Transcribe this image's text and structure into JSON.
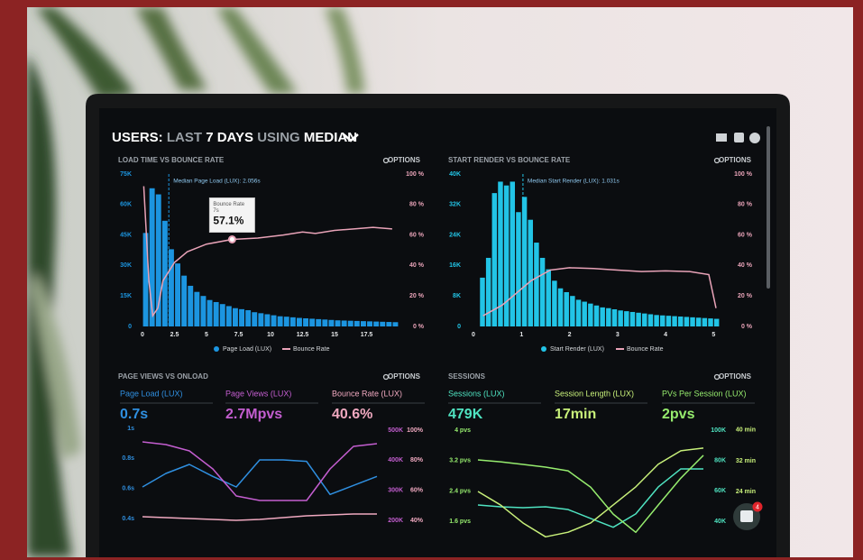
{
  "header": {
    "title_parts": [
      "USERS:",
      "LAST",
      "7 DAYS",
      "USING",
      "MEDIAN"
    ]
  },
  "panels": [
    {
      "title": "LOAD TIME VS BOUNCE RATE",
      "options": "OPTIONS",
      "type": "histogram",
      "bars": {
        "name": "Page Load (LUX)",
        "color": "#1c95e0",
        "bins": [
          0,
          0.5,
          1,
          1.5,
          2,
          2.5,
          3,
          3.5,
          4,
          4.5,
          5,
          5.5,
          6,
          6.5,
          7,
          7.5,
          8,
          8.5,
          9,
          9.5,
          10,
          10.5,
          11,
          11.5,
          12,
          12.5,
          13,
          13.5,
          14,
          14.5,
          15,
          15.5,
          16,
          16.5,
          17,
          17.5,
          18,
          18.5,
          19,
          19.5,
          20
        ],
        "values": [
          46000,
          68000,
          65000,
          52000,
          38000,
          31000,
          25000,
          20000,
          17000,
          15000,
          13000,
          12000,
          11000,
          10000,
          9000,
          8500,
          8000,
          7000,
          6500,
          6000,
          5500,
          5000,
          4800,
          4500,
          4200,
          4000,
          3800,
          3600,
          3400,
          3200,
          3000,
          2900,
          2800,
          2700,
          2600,
          2500,
          2400,
          2300,
          2200,
          2100
        ]
      },
      "line": {
        "name": "Bounce Rate",
        "color": "#e9a3b8",
        "x": [
          0.1,
          0.5,
          0.8,
          1.2,
          1.6,
          2.5,
          3.5,
          5,
          7,
          9,
          11,
          12.5,
          13.5,
          15,
          16.5,
          18,
          19.5
        ],
        "values": [
          92,
          30,
          7,
          12,
          30,
          42,
          49,
          54,
          57.1,
          58,
          60,
          62,
          61,
          63,
          64,
          65,
          64
        ]
      },
      "xlim": [
        0,
        20
      ],
      "xticks": [
        0,
        2.5,
        5,
        7.5,
        10,
        12.5,
        15,
        17.5
      ],
      "ylim": [
        0,
        75000
      ],
      "yticks": [
        {
          "value": 75000,
          "label": "75K"
        },
        {
          "value": 60000,
          "label": "60K"
        },
        {
          "value": 45000,
          "label": "45K"
        },
        {
          "value": 30000,
          "label": "30K"
        },
        {
          "value": 15000,
          "label": "15K"
        },
        0
      ],
      "y2lim": [
        0,
        100
      ],
      "y2ticks": [
        {
          "value": 100,
          "label": "100 %"
        },
        {
          "value": 80,
          "label": "80 %"
        },
        {
          "value": 60,
          "label": "60 %"
        },
        {
          "value": 40,
          "label": "40 %"
        },
        {
          "value": 20,
          "label": "20 %"
        },
        {
          "value": 0,
          "label": "0 %"
        }
      ],
      "annotation": "Median Page Load (LUX): 2.056s",
      "median": 2.056,
      "tooltip": {
        "title": "Bounce Rate",
        "x_label": "7s",
        "value_label": "57.1%",
        "x": 7,
        "value": 57.1
      }
    },
    {
      "title": "START RENDER VS BOUNCE RATE",
      "options": "OPTIONS",
      "type": "histogram",
      "bars": {
        "name": "Start Render (LUX)",
        "color": "#22c4e6",
        "bins": [
          0.125,
          0.25,
          0.375,
          0.5,
          0.625,
          0.75,
          0.875,
          1,
          1.125,
          1.25,
          1.375,
          1.5,
          1.625,
          1.75,
          1.875,
          2,
          2.125,
          2.25,
          2.375,
          2.5,
          2.625,
          2.75,
          2.875,
          3,
          3.125,
          3.25,
          3.375,
          3.5,
          3.625,
          3.75,
          3.875,
          4,
          4.125,
          4.25,
          4.375,
          4.5,
          4.625,
          4.75,
          4.875,
          5,
          5.125
        ],
        "values": [
          12800,
          18000,
          35000,
          38000,
          37000,
          38000,
          30000,
          34000,
          28000,
          22000,
          18000,
          15000,
          12000,
          10000,
          9000,
          8000,
          7000,
          6500,
          6000,
          5500,
          5000,
          4800,
          4500,
          4200,
          4000,
          3800,
          3600,
          3400,
          3200,
          3000,
          2900,
          2800,
          2700,
          2600,
          2500,
          2400,
          2300,
          2200,
          2100,
          2000
        ]
      },
      "line": {
        "name": "Bounce Rate",
        "color": "#e9a3b8",
        "x": [
          0.2,
          0.6,
          0.9,
          1.2,
          1.6,
          2,
          2.5,
          3,
          3.5,
          4,
          4.5,
          4.9,
          5.05
        ],
        "values": [
          7,
          14,
          22,
          30,
          37,
          38.5,
          38,
          37,
          36,
          36.5,
          36,
          34,
          12
        ]
      },
      "xlim": [
        0,
        5.2
      ],
      "xticks": [
        0,
        1,
        2,
        3,
        4,
        5
      ],
      "ylim": [
        0,
        40000
      ],
      "yticks": [
        {
          "value": 40000,
          "label": "40K"
        },
        {
          "value": 32000,
          "label": "32K"
        },
        {
          "value": 24000,
          "label": "24K"
        },
        {
          "value": 16000,
          "label": "16K"
        },
        {
          "value": 8000,
          "label": "8K"
        },
        0
      ],
      "y2lim": [
        0,
        100
      ],
      "y2ticks": [
        {
          "value": 100,
          "label": "100 %"
        },
        {
          "value": 80,
          "label": "80 %"
        },
        {
          "value": 60,
          "label": "60 %"
        },
        {
          "value": 40,
          "label": "40 %"
        },
        {
          "value": 20,
          "label": "20 %"
        },
        {
          "value": 0,
          "label": "0 %"
        }
      ],
      "annotation": "Median Start Render (LUX): 1.031s",
      "median": 1.031
    },
    {
      "title": "PAGE VIEWS VS ONLOAD",
      "options": "OPTIONS",
      "type": "lines",
      "metrics": [
        {
          "label": "Page Load (LUX)",
          "value_label": "0.7s",
          "color": "#2f8fe0",
          "axis": "y",
          "values": [
            0.61,
            0.7,
            0.76,
            0.68,
            0.61,
            0.79,
            0.79,
            0.78,
            0.56,
            0.62,
            0.68
          ]
        },
        {
          "label": "Page Views (LUX)",
          "value_label": "2.7Mpvs",
          "color": "#c45ed0",
          "axis": "y2",
          "values": [
            461000,
            452000,
            431000,
            371000,
            281000,
            266000,
            266000,
            266000,
            371000,
            446000,
            455000
          ]
        },
        {
          "label": "Bounce Rate (LUX)",
          "value_label": "40.6%",
          "color": "#f0a9c0",
          "axis": "y3",
          "values": [
            42.4,
            41.8,
            41.2,
            40.6,
            40,
            40.6,
            41.8,
            43,
            43.6,
            44.2,
            44.2
          ]
        }
      ],
      "ylim": [
        0.25,
        1.03
      ],
      "yticks": [
        {
          "value": 1,
          "label": "1s"
        },
        {
          "value": 0.8,
          "label": "0.8s"
        },
        {
          "value": 0.6,
          "label": "0.6s"
        },
        {
          "value": 0.4,
          "label": "0.4s"
        }
      ],
      "y2lim": [
        131000,
        521000
      ],
      "y2ticks": [
        {
          "value": 500000,
          "label": "500K"
        },
        {
          "value": 400000,
          "label": "400K"
        },
        {
          "value": 300000,
          "label": "300K"
        },
        {
          "value": 200000,
          "label": "200K"
        }
      ],
      "y3lim": [
        26.2,
        104.2
      ],
      "y3ticks": [
        {
          "value": 100,
          "label": "100%"
        },
        {
          "value": 80,
          "label": "80%"
        },
        {
          "value": 60,
          "label": "60%"
        },
        {
          "value": 40,
          "label": "40%"
        }
      ]
    },
    {
      "title": "SESSIONS",
      "options": "OPTIONS",
      "type": "lines",
      "metrics": [
        {
          "label": "Sessions (LUX)",
          "value_label": "479K",
          "color": "#4fe3c1",
          "axis": "y2",
          "values": [
            50700,
            49500,
            48900,
            49500,
            47700,
            41800,
            36000,
            44800,
            62600,
            74500,
            74500
          ]
        },
        {
          "label": "Session Length (LUX)",
          "value_label": "17min",
          "color": "#c8f07a",
          "axis": "y3",
          "values": [
            24,
            20.5,
            15.8,
            12.2,
            13.4,
            15.8,
            20.5,
            25.2,
            31.1,
            34.6,
            35.3
          ]
        },
        {
          "label": "PVs Per Session (LUX)",
          "value_label": "2pvs",
          "color": "#96ec6e",
          "axis": "y",
          "values": [
            3.22,
            3.17,
            3.1,
            3.03,
            2.93,
            2.5,
            1.79,
            1.31,
            2.03,
            2.74,
            3.34
          ]
        }
      ],
      "ylim": [
        1.08,
        4.17
      ],
      "yticks": [
        {
          "value": 4,
          "label": "4 pvs"
        },
        {
          "value": 3.2,
          "label": "3.2 pvs"
        },
        {
          "value": 2.4,
          "label": "2.4 pvs"
        },
        {
          "value": 1.6,
          "label": "1.6 pvs"
        }
      ],
      "y2lim": [
        26900,
        104200
      ],
      "y2ticks": [
        {
          "value": 100000,
          "label": "100K"
        },
        {
          "value": 80000,
          "label": "80K"
        },
        {
          "value": 60000,
          "label": "60K"
        },
        {
          "value": 40000,
          "label": "40K"
        }
      ],
      "y3lim": [
        11.1,
        41.6
      ],
      "y3ticks": [
        {
          "value": 40,
          "label": "40 min"
        },
        {
          "value": 32,
          "label": "32 min"
        },
        {
          "value": 24,
          "label": "24 min"
        }
      ]
    }
  ],
  "chat": {
    "badge": 4
  }
}
